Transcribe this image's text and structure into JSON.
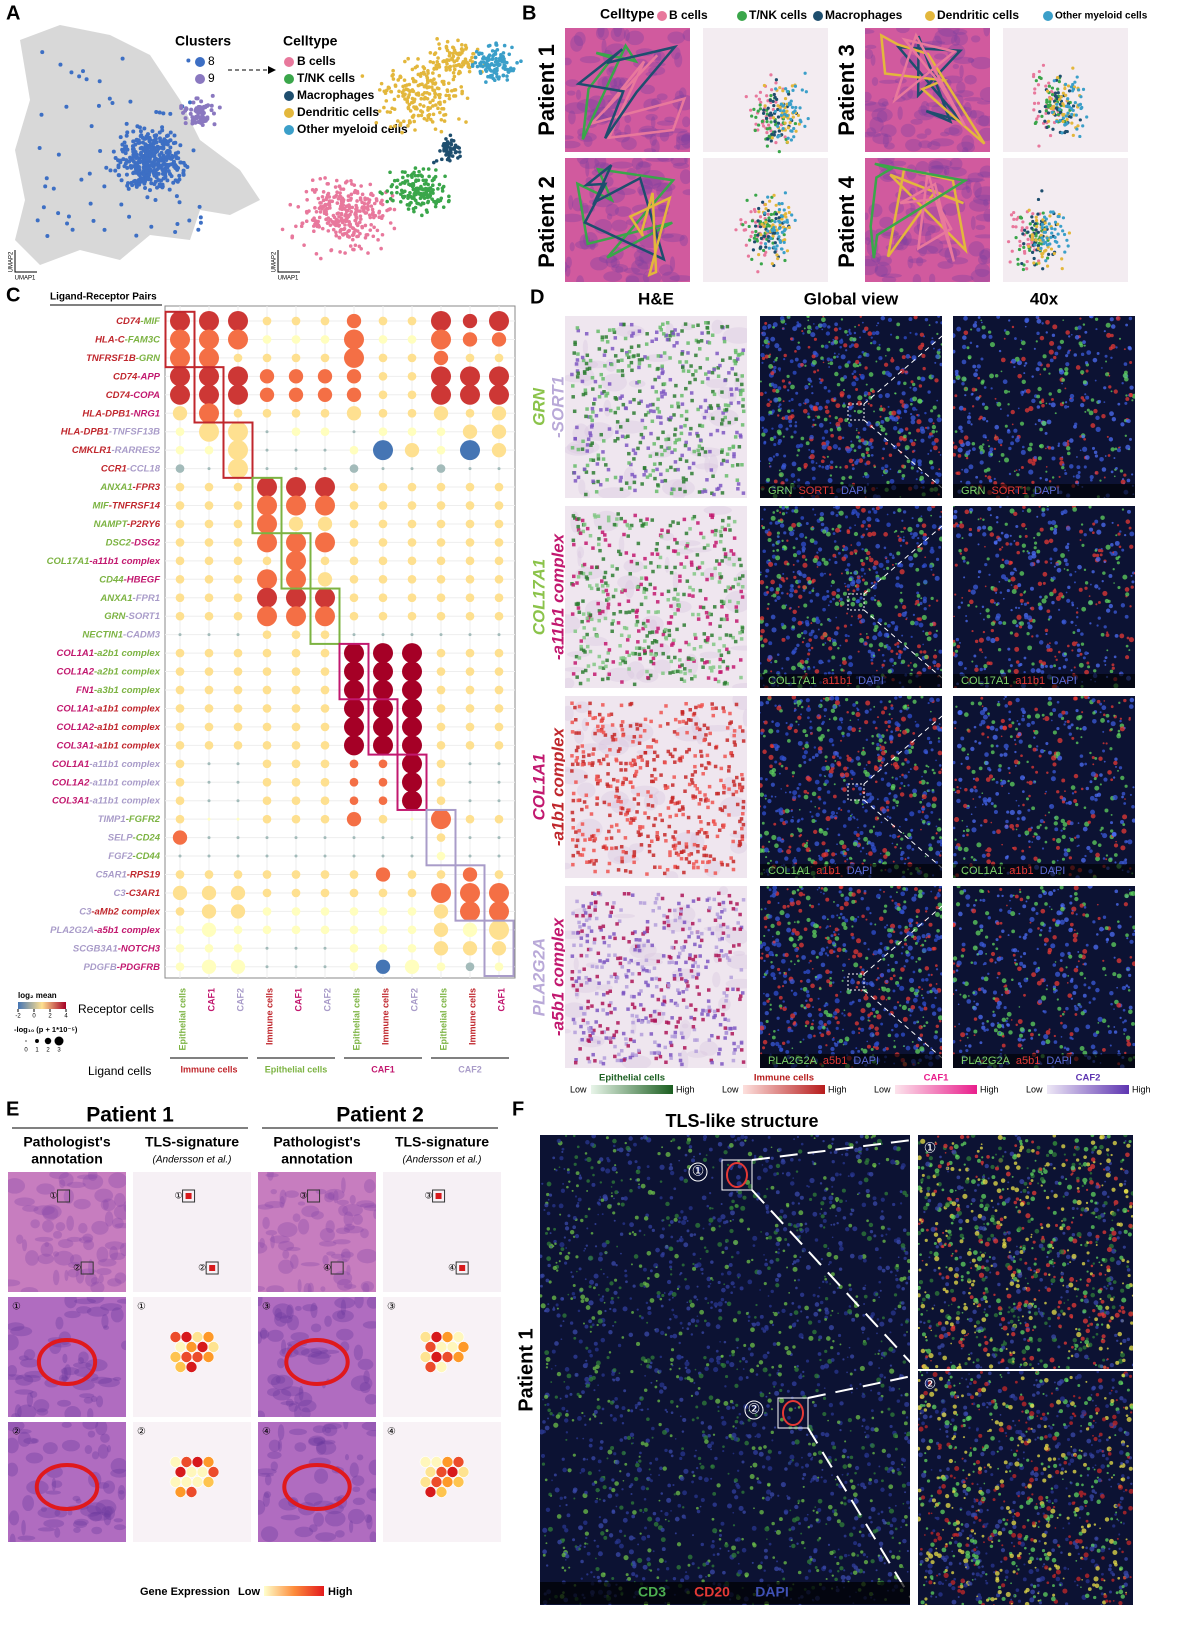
{
  "panel_letters": [
    "A",
    "B",
    "C",
    "D",
    "E",
    "F"
  ],
  "celltypes": [
    {
      "name": "B cells",
      "color": "#e8789c"
    },
    {
      "name": "T/NK cells",
      "color": "#3aa64a"
    },
    {
      "name": "Macrophages",
      "color": "#1e4e6e"
    },
    {
      "name": "Dendritic cells",
      "color": "#e3b73c"
    },
    {
      "name": "Other myeloid cells",
      "color": "#3b9fc9"
    }
  ],
  "panel_a": {
    "clusters_title": "Clusters",
    "clusters": [
      {
        "name": "8",
        "color": "#3d6fc4"
      },
      {
        "name": "9",
        "color": "#8a78c0"
      }
    ],
    "celltype_title": "Celltype",
    "umap_y": "UMAP2",
    "umap_x": "UMAP1"
  },
  "panel_b": {
    "celltype_title": "Celltype",
    "patients": [
      "Patient 1",
      "Patient 2",
      "Patient 3",
      "Patient 4"
    ]
  },
  "panel_c": {
    "title": "Ligand-Receptor Pairs",
    "palette": [
      "#c0272d",
      "#7cb342",
      "#c2186f",
      "#a99cc9"
    ],
    "rows": [
      {
        "ligand": "CD74",
        "receptor": "-MIF",
        "lc": 0,
        "rc": 1
      },
      {
        "ligand": "HLA-C",
        "receptor": "-FAM3C",
        "lc": 0,
        "rc": 1
      },
      {
        "ligand": "TNFRSF1B",
        "receptor": "-GRN",
        "lc": 0,
        "rc": 1
      },
      {
        "ligand": "CD74",
        "receptor": "-APP",
        "lc": 0,
        "rc": 2
      },
      {
        "ligand": "CD74",
        "receptor": "-COPA",
        "lc": 0,
        "rc": 2
      },
      {
        "ligand": "HLA-DPB1",
        "receptor": "-NRG1",
        "lc": 0,
        "rc": 2
      },
      {
        "ligand": "HLA-DPB1",
        "receptor": "-TNFSF13B",
        "lc": 0,
        "rc": 3
      },
      {
        "ligand": "CMKLR1",
        "receptor": "-RARRES2",
        "lc": 0,
        "rc": 3
      },
      {
        "ligand": "CCR1",
        "receptor": "-CCL18",
        "lc": 0,
        "rc": 3
      },
      {
        "ligand": "ANXA1",
        "receptor": "-FPR3",
        "lc": 1,
        "rc": 0
      },
      {
        "ligand": "MIF",
        "receptor": "-TNFRSF14",
        "lc": 1,
        "rc": 0
      },
      {
        "ligand": "NAMPT",
        "receptor": "-P2RY6",
        "lc": 1,
        "rc": 0
      },
      {
        "ligand": "DSC2",
        "receptor": "-DSG2",
        "lc": 1,
        "rc": 2
      },
      {
        "ligand": "COL17A1",
        "receptor": "-a11b1 complex",
        "lc": 1,
        "rc": 2
      },
      {
        "ligand": "CD44",
        "receptor": "-HBEGF",
        "lc": 1,
        "rc": 2
      },
      {
        "ligand": "ANXA1",
        "receptor": "-FPR1",
        "lc": 1,
        "rc": 3
      },
      {
        "ligand": "GRN",
        "receptor": "-SORT1",
        "lc": 1,
        "rc": 3
      },
      {
        "ligand": "NECTIN1",
        "receptor": "-CADM3",
        "lc": 1,
        "rc": 3
      },
      {
        "ligand": "COL1A1",
        "receptor": "-a2b1 complex",
        "lc": 2,
        "rc": 1
      },
      {
        "ligand": "COL1A2",
        "receptor": "-a2b1 complex",
        "lc": 2,
        "rc": 1
      },
      {
        "ligand": "FN1",
        "receptor": "-a3b1 complex",
        "lc": 2,
        "rc": 1
      },
      {
        "ligand": "COL1A1",
        "receptor": "-a1b1 complex",
        "lc": 2,
        "rc": 0
      },
      {
        "ligand": "COL1A2",
        "receptor": "-a1b1 complex",
        "lc": 2,
        "rc": 0
      },
      {
        "ligand": "COL3A1",
        "receptor": "-a1b1 complex",
        "lc": 2,
        "rc": 0
      },
      {
        "ligand": "COL1A1",
        "receptor": "-a11b1 complex",
        "lc": 2,
        "rc": 3
      },
      {
        "ligand": "COL1A2",
        "receptor": "-a11b1 complex",
        "lc": 2,
        "rc": 3
      },
      {
        "ligand": "COL3A1",
        "receptor": "-a11b1 complex",
        "lc": 2,
        "rc": 3
      },
      {
        "ligand": "TIMP1",
        "receptor": "-FGFR2",
        "lc": 3,
        "rc": 1
      },
      {
        "ligand": "SELP",
        "receptor": "-CD24",
        "lc": 3,
        "rc": 1
      },
      {
        "ligand": "FGF2",
        "receptor": "-CD44",
        "lc": 3,
        "rc": 1
      },
      {
        "ligand": "C5AR1",
        "receptor": "-RPS19",
        "lc": 3,
        "rc": 0
      },
      {
        "ligand": "C3",
        "receptor": "-C3AR1",
        "lc": 3,
        "rc": 0
      },
      {
        "ligand": "C3",
        "receptor": "-aMb2 complex",
        "lc": 3,
        "rc": 0
      },
      {
        "ligand": "PLA2G2A",
        "receptor": "-a5b1 complex",
        "lc": 3,
        "rc": 2
      },
      {
        "ligand": "SCGB3A1",
        "receptor": "-NOTCH3",
        "lc": 3,
        "rc": 2
      },
      {
        "ligand": "PDGFB",
        "receptor": "-PDGFRB",
        "lc": 3,
        "rc": 2
      }
    ],
    "columns": [
      {
        "label": "Epithelial cells",
        "c": 1
      },
      {
        "label": "CAF1",
        "c": 2
      },
      {
        "label": "CAF2",
        "c": 3
      },
      {
        "label": "Immune cells",
        "c": 0
      },
      {
        "label": "CAF1",
        "c": 2
      },
      {
        "label": "CAF2",
        "c": 3
      },
      {
        "label": "Epithelial cells",
        "c": 1
      },
      {
        "label": "Immune cells",
        "c": 0
      },
      {
        "label": "CAF2",
        "c": 3
      },
      {
        "label": "Epithelial cells",
        "c": 1
      },
      {
        "label": "Immune cells",
        "c": 0
      },
      {
        "label": "CAF1",
        "c": 2
      }
    ],
    "ligand_groups": [
      {
        "label": "Immune cells",
        "c": 0
      },
      {
        "label": "Epithelial cells",
        "c": 1
      },
      {
        "label": "CAF1",
        "c": 2
      },
      {
        "label": "CAF2",
        "c": 3
      }
    ],
    "receptor_axis": "Receptor cells",
    "ligand_axis": "Ligand cells",
    "mean_title": "log₂ mean",
    "mean_ticks": [
      -2,
      0,
      2,
      4
    ],
    "size_title": "-log₁₀ (p + 1*10⁻⁵)",
    "size_ticks": [
      0,
      1,
      2,
      3
    ],
    "size": [
      [
        3,
        3,
        3,
        1,
        1,
        1,
        2,
        1,
        1,
        3,
        2,
        3
      ],
      [
        3,
        3,
        3,
        1,
        1,
        1,
        3,
        1,
        1,
        3,
        2,
        2
      ],
      [
        3,
        3,
        1,
        1,
        1,
        1,
        3,
        1,
        1,
        2,
        1,
        1
      ],
      [
        3,
        3,
        3,
        2,
        2,
        2,
        2,
        1,
        1,
        3,
        3,
        3
      ],
      [
        3,
        3,
        3,
        2,
        2,
        2,
        2,
        1,
        1,
        3,
        3,
        3
      ],
      [
        2,
        3,
        1,
        1,
        1,
        1,
        2,
        1,
        1,
        2,
        1,
        2
      ],
      [
        1,
        3,
        3,
        0,
        1,
        1,
        0,
        1,
        1,
        1,
        2,
        2
      ],
      [
        1,
        1,
        3,
        0,
        0,
        0,
        1,
        3,
        2,
        1,
        3,
        2
      ],
      [
        1,
        0,
        3,
        0,
        0,
        0,
        1,
        0,
        0,
        1,
        0,
        0
      ],
      [
        1,
        1,
        1,
        3,
        3,
        3,
        1,
        1,
        1,
        1,
        1,
        1
      ],
      [
        1,
        1,
        1,
        3,
        3,
        3,
        1,
        1,
        1,
        1,
        1,
        1
      ],
      [
        1,
        1,
        1,
        3,
        2,
        2,
        1,
        1,
        1,
        1,
        1,
        1
      ],
      [
        1,
        1,
        1,
        3,
        3,
        3,
        1,
        1,
        1,
        1,
        1,
        1
      ],
      [
        1,
        1,
        1,
        1,
        3,
        1,
        1,
        1,
        1,
        1,
        1,
        1
      ],
      [
        1,
        1,
        1,
        3,
        3,
        2,
        1,
        1,
        1,
        1,
        1,
        1
      ],
      [
        1,
        1,
        1,
        3,
        3,
        3,
        1,
        1,
        1,
        1,
        1,
        1
      ],
      [
        1,
        1,
        1,
        3,
        3,
        3,
        1,
        1,
        1,
        1,
        1,
        1
      ],
      [
        0,
        0,
        0,
        1,
        1,
        1,
        0,
        0,
        0,
        0,
        0,
        0
      ],
      [
        1,
        1,
        1,
        1,
        1,
        1,
        3,
        3,
        3,
        1,
        1,
        1
      ],
      [
        1,
        1,
        1,
        1,
        1,
        1,
        3,
        3,
        3,
        1,
        1,
        1
      ],
      [
        1,
        1,
        1,
        1,
        1,
        1,
        3,
        3,
        3,
        1,
        1,
        1
      ],
      [
        1,
        1,
        1,
        1,
        1,
        1,
        3,
        3,
        3,
        1,
        1,
        1
      ],
      [
        1,
        1,
        1,
        1,
        1,
        1,
        3,
        3,
        3,
        1,
        1,
        1
      ],
      [
        1,
        1,
        1,
        1,
        1,
        1,
        3,
        3,
        3,
        1,
        1,
        1
      ],
      [
        1,
        0,
        0,
        1,
        1,
        1,
        1,
        1,
        3,
        1,
        0,
        0
      ],
      [
        1,
        0,
        0,
        1,
        1,
        1,
        1,
        1,
        3,
        1,
        0,
        0
      ],
      [
        1,
        0,
        0,
        1,
        1,
        1,
        1,
        1,
        3,
        1,
        0,
        0
      ],
      [
        1,
        0,
        0,
        1,
        1,
        1,
        2,
        1,
        0,
        3,
        1,
        1
      ],
      [
        2,
        0,
        0,
        0,
        0,
        0,
        0,
        0,
        0,
        1,
        0,
        0
      ],
      [
        0,
        0,
        0,
        0,
        0,
        0,
        0,
        0,
        0,
        1,
        0,
        0
      ],
      [
        1,
        1,
        1,
        1,
        1,
        1,
        1,
        2,
        1,
        1,
        2,
        1
      ],
      [
        2,
        2,
        2,
        1,
        1,
        1,
        1,
        1,
        1,
        3,
        3,
        3
      ],
      [
        1,
        2,
        2,
        1,
        1,
        1,
        1,
        1,
        1,
        2,
        3,
        3
      ],
      [
        1,
        2,
        1,
        1,
        1,
        1,
        1,
        1,
        1,
        2,
        2,
        3
      ],
      [
        1,
        1,
        1,
        0,
        0,
        0,
        1,
        1,
        1,
        2,
        2,
        2
      ],
      [
        1,
        2,
        2,
        0,
        0,
        0,
        1,
        2,
        2,
        1,
        1,
        1
      ]
    ],
    "mean": [
      [
        3,
        3,
        3,
        1,
        1,
        1,
        2,
        1,
        1,
        3,
        3,
        3
      ],
      [
        2,
        2,
        2,
        0,
        0,
        0,
        2,
        0,
        0,
        2,
        2,
        2
      ],
      [
        2,
        2,
        1,
        1,
        1,
        1,
        2,
        1,
        1,
        2,
        1,
        1
      ],
      [
        3,
        3,
        3,
        2,
        2,
        2,
        2,
        1,
        1,
        3,
        3,
        3
      ],
      [
        3,
        3,
        3,
        2,
        2,
        2,
        2,
        1,
        1,
        3,
        3,
        3
      ],
      [
        1,
        2,
        1,
        1,
        1,
        1,
        1,
        1,
        1,
        1,
        1,
        1
      ],
      [
        0,
        1,
        1,
        -1,
        0,
        0,
        -1,
        0,
        0,
        0,
        1,
        1
      ],
      [
        0,
        0,
        1,
        -1,
        -1,
        -1,
        0,
        -2,
        1,
        0,
        -2,
        1
      ],
      [
        -1,
        -1,
        1,
        -1,
        -1,
        -1,
        -1,
        -1,
        -1,
        -1,
        -1,
        -1
      ],
      [
        1,
        1,
        1,
        3,
        3,
        3,
        1,
        1,
        1,
        1,
        1,
        1
      ],
      [
        1,
        1,
        1,
        2,
        2,
        2,
        1,
        1,
        1,
        1,
        1,
        1
      ],
      [
        1,
        1,
        1,
        2,
        1,
        1,
        1,
        1,
        1,
        1,
        1,
        1
      ],
      [
        1,
        1,
        1,
        2,
        2,
        2,
        1,
        1,
        1,
        1,
        1,
        1
      ],
      [
        1,
        1,
        1,
        1,
        2,
        1,
        1,
        1,
        1,
        1,
        1,
        1
      ],
      [
        1,
        1,
        1,
        2,
        2,
        1,
        1,
        1,
        1,
        1,
        1,
        1
      ],
      [
        1,
        1,
        1,
        3,
        3,
        3,
        1,
        1,
        1,
        1,
        1,
        1
      ],
      [
        1,
        1,
        1,
        2,
        2,
        2,
        1,
        1,
        1,
        1,
        1,
        1
      ],
      [
        -1,
        -1,
        -1,
        1,
        1,
        1,
        -1,
        -1,
        -1,
        -1,
        -1,
        -1
      ],
      [
        1,
        1,
        1,
        1,
        1,
        1,
        4,
        4,
        4,
        1,
        1,
        1
      ],
      [
        1,
        1,
        1,
        1,
        1,
        1,
        4,
        4,
        4,
        1,
        1,
        1
      ],
      [
        1,
        1,
        1,
        1,
        1,
        1,
        4,
        4,
        4,
        1,
        1,
        1
      ],
      [
        1,
        1,
        1,
        1,
        1,
        1,
        4,
        4,
        4,
        1,
        1,
        1
      ],
      [
        1,
        1,
        1,
        1,
        1,
        1,
        4,
        4,
        4,
        1,
        1,
        1
      ],
      [
        1,
        1,
        1,
        1,
        1,
        1,
        4,
        4,
        4,
        1,
        1,
        1
      ],
      [
        1,
        -1,
        -1,
        1,
        1,
        1,
        2,
        2,
        4,
        1,
        -1,
        -1
      ],
      [
        1,
        -1,
        -1,
        1,
        1,
        1,
        2,
        2,
        4,
        1,
        -1,
        -1
      ],
      [
        1,
        -1,
        -1,
        1,
        1,
        1,
        2,
        2,
        4,
        1,
        -1,
        -1
      ],
      [
        1,
        0,
        0,
        1,
        1,
        1,
        2,
        1,
        0,
        2,
        1,
        1
      ],
      [
        2,
        -1,
        -1,
        -1,
        -1,
        -1,
        -1,
        -1,
        -1,
        1,
        -1,
        -1
      ],
      [
        -1,
        -1,
        -1,
        -1,
        -1,
        -1,
        -1,
        -1,
        -1,
        0,
        -1,
        -1
      ],
      [
        1,
        1,
        1,
        1,
        1,
        1,
        1,
        2,
        1,
        1,
        2,
        1
      ],
      [
        1,
        1,
        1,
        1,
        1,
        1,
        1,
        1,
        1,
        2,
        2,
        2
      ],
      [
        1,
        1,
        1,
        0,
        0,
        0,
        0,
        0,
        0,
        1,
        2,
        2
      ],
      [
        0,
        0,
        0,
        0,
        0,
        0,
        0,
        0,
        0,
        1,
        0,
        1
      ],
      [
        0,
        0,
        0,
        -1,
        -1,
        -1,
        0,
        0,
        0,
        1,
        1,
        1
      ],
      [
        0,
        0,
        0,
        -1,
        -1,
        -1,
        0,
        -2,
        0,
        0,
        -1,
        0
      ]
    ]
  },
  "panel_d": {
    "headers": [
      "H&E",
      "Global view",
      "40x"
    ],
    "rows": [
      {
        "a": "GRN",
        "b": "-SORT1",
        "ca": "#8bc34a",
        "cb": "#b9a9d8",
        "markers": [
          "GRN",
          "SORT1",
          "DAPI"
        ]
      },
      {
        "a": "COL17A1",
        "b": "-a11b1 complex",
        "ca": "#8bc34a",
        "cb": "#c2186f",
        "markers": [
          "COL17A1",
          "a11b1",
          "DAPI"
        ]
      },
      {
        "a": "COL1A1",
        "b": "-a1b1 complex",
        "ca": "#c2186f",
        "cb": "#c0272d",
        "markers": [
          "COL1A1",
          "a1b1",
          "DAPI"
        ]
      },
      {
        "a": "PLA2G2A",
        "b": "-a5b1 complex",
        "ca": "#b9a9d8",
        "cb": "#c2186f",
        "markers": [
          "PLA2G2A",
          "a5b1",
          "DAPI"
        ]
      }
    ],
    "colorbars": [
      {
        "name": "Epithelial cells",
        "from": "#e8f5e9",
        "to": "#1b5e20"
      },
      {
        "name": "Immune cells",
        "from": "#fde0dd",
        "to": "#b71c1c"
      },
      {
        "name": "CAF1",
        "from": "#fce4ec",
        "to": "#e91e8c"
      },
      {
        "name": "CAF2",
        "from": "#ede7f6",
        "to": "#5e35b1"
      }
    ],
    "low": "Low",
    "high": "High"
  },
  "panel_e": {
    "patients": [
      "Patient 1",
      "Patient 2"
    ],
    "annotation": [
      "Pathologist's",
      "annotation"
    ],
    "signature": "TLS-signature",
    "cite": "(Andersson et al.)",
    "markers": [
      "①",
      "②",
      "③",
      "④"
    ],
    "bar_title": "Gene Expression",
    "low": "Low",
    "high": "High"
  },
  "panel_f": {
    "title": "TLS-like structure",
    "patient": "Patient 1",
    "markers": [
      "①",
      "②"
    ],
    "channels": [
      {
        "name": "CD3",
        "color": "#4caf50"
      },
      {
        "name": "CD20",
        "color": "#e53935"
      },
      {
        "name": "DAPI",
        "color": "#3f51b5"
      }
    ]
  }
}
